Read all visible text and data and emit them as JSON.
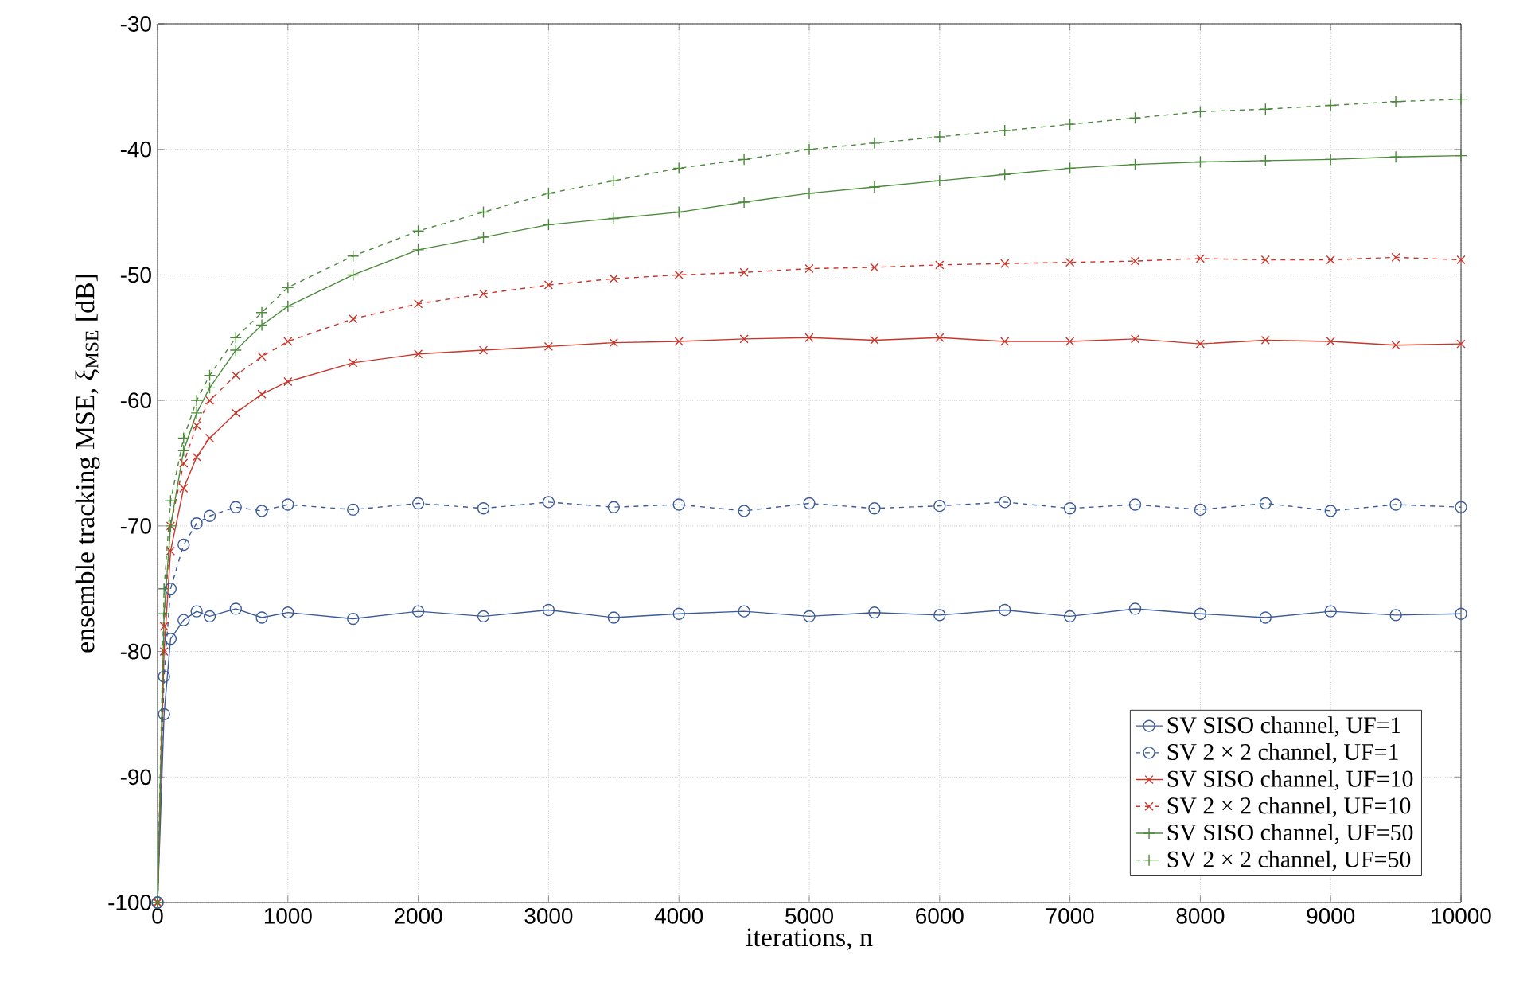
{
  "chart_data": {
    "type": "line",
    "xlabel": "iterations, n",
    "ylabel": "ensemble tracking MSE, ξ$_{MSE}$ [dB]",
    "x": [
      0,
      50,
      100,
      200,
      300,
      400,
      600,
      800,
      1000,
      1500,
      2000,
      2500,
      3000,
      3500,
      4000,
      4500,
      5000,
      5500,
      6000,
      6500,
      7000,
      7500,
      8000,
      8500,
      9000,
      9500,
      10000
    ],
    "series": [
      {
        "name": "SV SISO channel, UF=1",
        "color": "#3a5a9a",
        "marker": "circle",
        "line_style": "solid",
        "values": [
          -100,
          -85,
          -79,
          -77.5,
          -76.8,
          -77.2,
          -76.6,
          -77.3,
          -76.9,
          -77.4,
          -76.8,
          -77.2,
          -76.7,
          -77.3,
          -77,
          -76.8,
          -77.2,
          -76.9,
          -77.1,
          -76.7,
          -77.2,
          -76.6,
          -77,
          -77.3,
          -76.8,
          -77.1,
          -77
        ]
      },
      {
        "name": "SV 2 × 2 channel, UF=1",
        "color": "#3a5a9a",
        "marker": "circle",
        "line_style": "dashed",
        "values": [
          -100,
          -82,
          -75,
          -71.5,
          -69.8,
          -69.2,
          -68.5,
          -68.8,
          -68.3,
          -68.7,
          -68.2,
          -68.6,
          -68.1,
          -68.5,
          -68.3,
          -68.8,
          -68.2,
          -68.6,
          -68.4,
          -68.1,
          -68.6,
          -68.3,
          -68.7,
          -68.2,
          -68.8,
          -68.3,
          -68.5
        ]
      },
      {
        "name": "SV SISO channel, UF=10",
        "color": "#c8352a",
        "marker": "cross",
        "line_style": "solid",
        "values": [
          -100,
          -80,
          -72,
          -67,
          -64.5,
          -63,
          -61,
          -59.5,
          -58.5,
          -57,
          -56.3,
          -56,
          -55.7,
          -55.4,
          -55.3,
          -55.1,
          -55,
          -55.2,
          -55,
          -55.3,
          -55.3,
          -55.1,
          -55.5,
          -55.2,
          -55.3,
          -55.6,
          -55.5
        ]
      },
      {
        "name": "SV 2 × 2 channel, UF=10",
        "color": "#c8352a",
        "marker": "cross",
        "line_style": "dashed",
        "values": [
          -100,
          -78,
          -70,
          -65,
          -62,
          -60,
          -58,
          -56.5,
          -55.3,
          -53.5,
          -52.3,
          -51.5,
          -50.8,
          -50.3,
          -50,
          -49.8,
          -49.5,
          -49.4,
          -49.2,
          -49.1,
          -49,
          -48.9,
          -48.7,
          -48.8,
          -48.8,
          -48.6,
          -48.8
        ]
      },
      {
        "name": "SV SISO channel, UF=50",
        "color": "#4a8a3a",
        "marker": "plus",
        "line_style": "solid",
        "values": [
          -100,
          -77,
          -70,
          -64,
          -61,
          -59,
          -56,
          -54,
          -52.5,
          -50,
          -48,
          -47,
          -46,
          -45.5,
          -45,
          -44.2,
          -43.5,
          -43,
          -42.5,
          -42,
          -41.5,
          -41.2,
          -41,
          -40.9,
          -40.8,
          -40.6,
          -40.5
        ]
      },
      {
        "name": "SV 2 × 2 channel, UF=50",
        "color": "#4a8a3a",
        "marker": "plus",
        "line_style": "dashed",
        "values": [
          -100,
          -75,
          -68,
          -63,
          -60,
          -58,
          -55,
          -53,
          -51,
          -48.5,
          -46.5,
          -45,
          -43.5,
          -42.5,
          -41.5,
          -40.8,
          -40,
          -39.5,
          -39,
          -38.5,
          -38,
          -37.5,
          -37,
          -36.8,
          -36.5,
          -36.2,
          -36
        ]
      }
    ],
    "xlim": [
      0,
      10000
    ],
    "ylim": [
      -100,
      -30
    ],
    "xticks": [
      0,
      1000,
      2000,
      3000,
      4000,
      5000,
      6000,
      7000,
      8000,
      9000,
      10000
    ],
    "yticks": [
      -100,
      -90,
      -80,
      -70,
      -60,
      -50,
      -40,
      -30
    ],
    "grid": true,
    "legend": "bottom right"
  }
}
